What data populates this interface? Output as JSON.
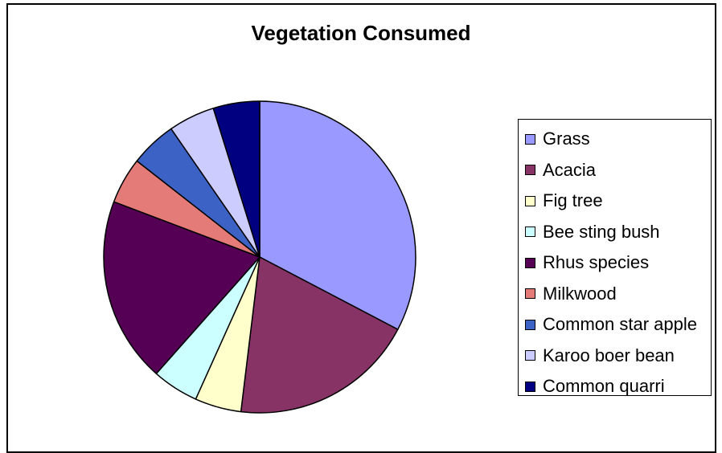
{
  "chart_data": {
    "type": "pie",
    "title": "Vegetation Consumed",
    "legend_position": "right",
    "categories": [
      "Grass",
      "Acacia",
      "Fig tree",
      "Bee sting bush",
      "Rhus species",
      "Milkwood",
      "Common star apple",
      "Karoo boer bean",
      "Common quarri"
    ],
    "values": [
      34,
      20,
      5,
      5,
      20,
      5,
      5,
      5,
      5
    ],
    "colors": [
      "#9999FF",
      "#883366",
      "#FFFFCC",
      "#CCFFFF",
      "#550055",
      "#E47B78",
      "#3B62C4",
      "#CCCCFF",
      "#000080"
    ]
  }
}
